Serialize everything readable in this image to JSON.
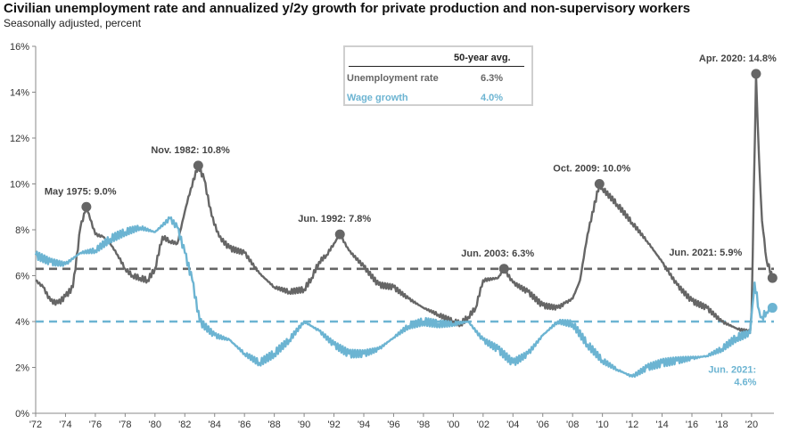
{
  "title": "Civilian unemployment rate and annualized y/2y growth for private production and non-supervisory workers",
  "subtitle": "Seasonally adjusted, percent",
  "legend": {
    "header": "50-year avg.",
    "rows": [
      {
        "label": "Unemployment rate",
        "value": "6.3%",
        "color": "#666666"
      },
      {
        "label": "Wage growth",
        "value": "4.0%",
        "color": "#6cb4d2"
      }
    ]
  },
  "chart_data": {
    "type": "line",
    "ylim": [
      0,
      16
    ],
    "xlim": [
      1972,
      2021.5
    ],
    "y_ticks": [
      "0%",
      "2%",
      "4%",
      "6%",
      "8%",
      "10%",
      "12%",
      "14%",
      "16%"
    ],
    "x_ticks": [
      "'72",
      "'74",
      "'76",
      "'78",
      "'80",
      "'82",
      "'84",
      "'86",
      "'88",
      "'90",
      "'92",
      "'94",
      "'96",
      "'98",
      "'00",
      "'02",
      "'04",
      "'06",
      "'08",
      "'10",
      "'12",
      "'14",
      "'16",
      "'18",
      "'20"
    ],
    "grid": false,
    "series": [
      {
        "name": "Unemployment rate",
        "color": "#666666",
        "x": [
          1972.0,
          1972.5,
          1973.0,
          1973.5,
          1974.0,
          1974.5,
          1975.0,
          1975.4,
          1976.0,
          1976.5,
          1977.0,
          1977.5,
          1978.0,
          1978.5,
          1979.0,
          1979.5,
          1980.0,
          1980.5,
          1981.0,
          1981.5,
          1982.0,
          1982.4,
          1982.9,
          1983.3,
          1983.8,
          1984.3,
          1985.0,
          1986.0,
          1987.0,
          1988.0,
          1989.0,
          1990.0,
          1990.5,
          1991.0,
          1991.5,
          1992.0,
          1992.4,
          1993.0,
          1994.0,
          1995.0,
          1996.0,
          1997.0,
          1998.0,
          1999.0,
          2000.0,
          2000.5,
          2001.0,
          2001.5,
          2002.0,
          2003.0,
          2003.4,
          2004.0,
          2005.0,
          2006.0,
          2007.0,
          2007.5,
          2008.0,
          2008.5,
          2009.0,
          2009.8,
          2010.0,
          2011.0,
          2012.0,
          2013.0,
          2014.0,
          2015.0,
          2016.0,
          2017.0,
          2018.0,
          2019.0,
          2019.9,
          2020.0,
          2020.3,
          2020.5,
          2020.7,
          2021.0,
          2021.4
        ],
        "values": [
          5.8,
          5.5,
          4.9,
          4.8,
          5.1,
          5.5,
          8.1,
          9.0,
          7.8,
          7.7,
          7.4,
          6.9,
          6.3,
          6.0,
          5.9,
          5.8,
          6.3,
          7.7,
          7.5,
          7.4,
          8.8,
          9.8,
          10.8,
          10.2,
          8.6,
          7.7,
          7.2,
          7.0,
          6.1,
          5.5,
          5.3,
          5.4,
          5.9,
          6.6,
          6.9,
          7.4,
          7.8,
          7.1,
          6.4,
          5.6,
          5.5,
          5.0,
          4.6,
          4.3,
          4.0,
          3.9,
          4.2,
          4.6,
          5.8,
          5.9,
          6.3,
          5.7,
          5.3,
          4.7,
          4.6,
          4.8,
          5.0,
          5.8,
          7.8,
          10.0,
          9.8,
          9.1,
          8.3,
          7.5,
          6.6,
          5.6,
          4.9,
          4.6,
          4.0,
          3.7,
          3.5,
          4.4,
          14.8,
          11.1,
          8.4,
          6.7,
          5.9
        ]
      },
      {
        "name": "Wage growth",
        "color": "#6cb4d2",
        "x": [
          1972.0,
          1973.0,
          1974.0,
          1975.0,
          1976.0,
          1977.0,
          1978.0,
          1979.0,
          1980.0,
          1981.0,
          1981.5,
          1982.0,
          1982.5,
          1983.0,
          1984.0,
          1985.0,
          1986.0,
          1987.0,
          1988.0,
          1989.0,
          1990.0,
          1991.0,
          1992.0,
          1993.0,
          1994.0,
          1995.0,
          1996.0,
          1997.0,
          1998.0,
          1999.0,
          2000.0,
          2001.0,
          2002.0,
          2003.0,
          2004.0,
          2005.0,
          2006.0,
          2007.0,
          2008.0,
          2009.0,
          2010.0,
          2011.0,
          2012.0,
          2013.0,
          2014.0,
          2015.0,
          2016.0,
          2017.0,
          2018.0,
          2019.0,
          2019.9,
          2020.2,
          2020.5,
          2020.7,
          2021.0,
          2021.4
        ],
        "values": [
          6.9,
          6.6,
          6.5,
          7.0,
          7.1,
          7.6,
          7.9,
          8.1,
          7.9,
          8.5,
          8.1,
          7.0,
          5.8,
          4.0,
          3.4,
          3.2,
          2.6,
          2.2,
          2.6,
          3.2,
          4.0,
          3.6,
          3.0,
          2.6,
          2.6,
          2.8,
          3.3,
          3.8,
          4.0,
          3.9,
          3.9,
          4.0,
          3.2,
          2.8,
          2.2,
          2.6,
          3.4,
          4.0,
          3.9,
          3.0,
          2.3,
          1.9,
          1.6,
          2.0,
          2.2,
          2.3,
          2.4,
          2.5,
          2.8,
          3.3,
          3.5,
          5.7,
          4.5,
          4.2,
          4.4,
          4.6
        ]
      }
    ],
    "reference_lines": [
      {
        "label": "50-year avg. unemployment rate",
        "value": 6.3,
        "color": "#666666"
      },
      {
        "label": "50-year avg. wage growth",
        "value": 4.0,
        "color": "#6cb4d2"
      }
    ],
    "annotations": [
      {
        "text": "May 1975: 9.0%",
        "x": 1975.4,
        "y": 9.0,
        "series": 0
      },
      {
        "text": "Nov. 1982: 10.8%",
        "x": 1982.9,
        "y": 10.8,
        "series": 0
      },
      {
        "text": "Jun. 1992: 7.8%",
        "x": 1992.4,
        "y": 7.8,
        "series": 0
      },
      {
        "text": "Jun. 2003: 6.3%",
        "x": 2003.4,
        "y": 6.3,
        "series": 0
      },
      {
        "text": "Oct. 2009: 10.0%",
        "x": 2009.8,
        "y": 10.0,
        "series": 0
      },
      {
        "text": "Apr. 2020: 14.8%",
        "x": 2020.3,
        "y": 14.8,
        "series": 0
      },
      {
        "text": "Jun. 2021: 5.9%",
        "x": 2021.4,
        "y": 5.9,
        "series": 0
      },
      {
        "text": "Jun. 2021:",
        "x": 2021.4,
        "y": 4.6,
        "series": 1
      },
      {
        "text": "4.6%",
        "x": 2021.4,
        "y": 4.6,
        "series": 1
      }
    ]
  }
}
